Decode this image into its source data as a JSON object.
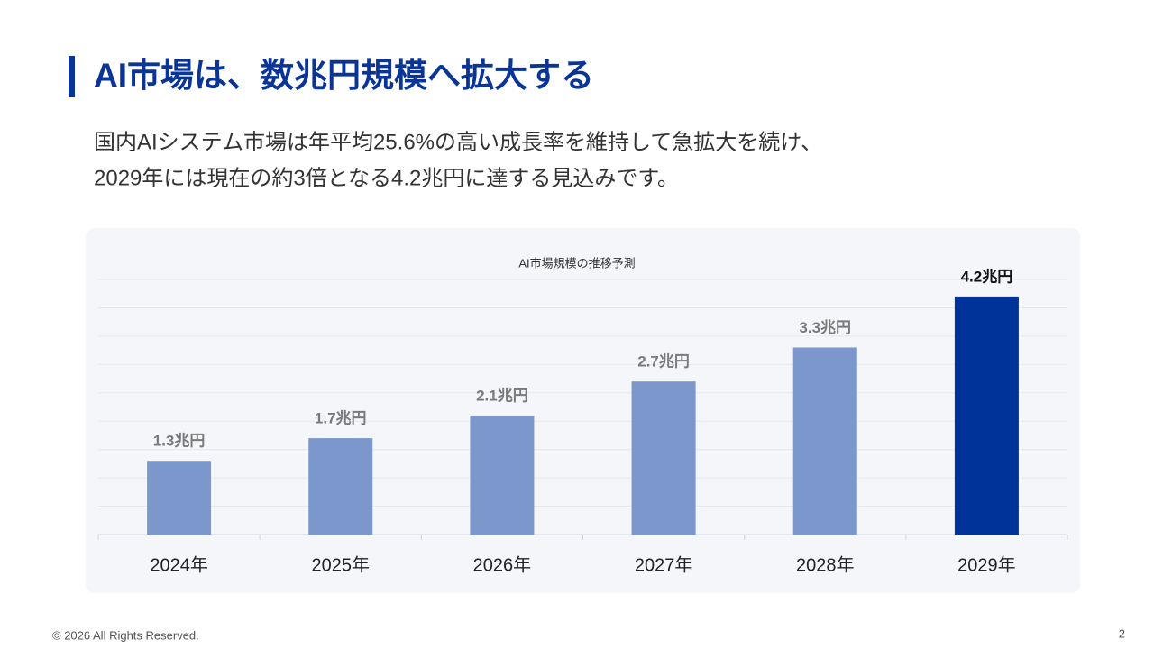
{
  "header": {
    "title": "AI市場は、数兆円規模へ拡大する",
    "lead": [
      "国内AIシステム市場は年平均25.6%の高い成長率を維持して急拡大を続け、",
      "2029年には現在の約3倍となる4.2兆円に達する見込みです。"
    ]
  },
  "chart_data": {
    "type": "bar",
    "title": "AI市場規模の推移予測",
    "categories": [
      "2024年",
      "2025年",
      "2026年",
      "2027年",
      "2028年",
      "2029年"
    ],
    "values": [
      1.3,
      1.7,
      2.1,
      2.7,
      3.3,
      4.2
    ],
    "value_labels": [
      "1.3兆円",
      "1.7兆円",
      "2.1兆円",
      "2.7兆円",
      "3.3兆円",
      "4.2兆円"
    ],
    "colors": [
      "#7b97cc",
      "#7b97cc",
      "#7b97cc",
      "#7b97cc",
      "#7b97cc",
      "#003399"
    ],
    "label_colors": [
      "#7a7a7a",
      "#7a7a7a",
      "#7a7a7a",
      "#7a7a7a",
      "#7a7a7a",
      "#111111"
    ],
    "ylim": [
      0,
      4.5
    ],
    "yticks": [
      0,
      0.5,
      1,
      1.5,
      2,
      2.5,
      3,
      3.5,
      4,
      4.5
    ],
    "grid": true
  },
  "footer": {
    "copyright": "© 2026 All Rights Reserved.",
    "page": "2"
  }
}
